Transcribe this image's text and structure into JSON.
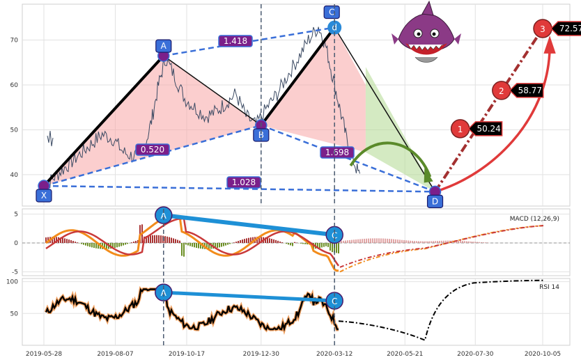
{
  "chart_data": [
    {
      "type": "line",
      "panel": "price",
      "title": "",
      "xlabel": "",
      "ylabel": "",
      "ylim": [
        33,
        78
      ],
      "yticks": [
        40,
        50,
        60,
        70
      ],
      "x_dates": [
        "2019-05-28",
        "2019-08-07",
        "2019-10-17",
        "2019-12-30",
        "2020-03-12",
        "2020-05-21",
        "2020-07-30",
        "2020-10-05"
      ],
      "price_series": {
        "name": "",
        "x": [
          "2019-05-28",
          "2019-06-05",
          "2019-06-15",
          "2019-06-25",
          "2019-07-05",
          "2019-07-15",
          "2019-07-25",
          "2019-08-05",
          "2019-08-15",
          "2019-08-25",
          "2019-09-05",
          "2019-09-12",
          "2019-09-19",
          "2019-09-26",
          "2019-10-05",
          "2019-10-15",
          "2019-10-25",
          "2019-11-05",
          "2019-11-15",
          "2019-11-25",
          "2019-12-05",
          "2019-12-15",
          "2019-12-25",
          "2020-01-05",
          "2020-01-15",
          "2020-01-25",
          "2020-02-05",
          "2020-02-15",
          "2020-02-25",
          "2020-03-03",
          "2020-03-10",
          "2020-03-17",
          "2020-03-24",
          "2020-03-31",
          "2020-04-07"
        ],
        "y": [
          37,
          39,
          41,
          43,
          45,
          47,
          49,
          48,
          45,
          44,
          46,
          52,
          60,
          66,
          62,
          57,
          55,
          53,
          54,
          56,
          58,
          53,
          51,
          55,
          58,
          62,
          66,
          70,
          73,
          69,
          62,
          55,
          48,
          43,
          39
        ]
      },
      "xabcd": {
        "points": [
          {
            "label": "X",
            "x": "2019-05-28",
            "y": 37.5
          },
          {
            "label": "A",
            "x": "2019-09-24",
            "y": 66.5
          },
          {
            "label": "B",
            "x": "2019-12-30",
            "y": 51.0
          },
          {
            "label": "C",
            "x": "2020-03-12",
            "y": 72.8
          },
          {
            "label": "D",
            "x": "2020-06-20",
            "y": 36.2
          }
        ],
        "ratios": [
          {
            "text": "0.520",
            "between": "XA-AB"
          },
          {
            "text": "1.418",
            "between": "A-C"
          },
          {
            "text": "1.698",
            "between": "B-D"
          },
          {
            "text": "1.028",
            "between": "X-D"
          }
        ]
      },
      "targets": [
        {
          "label": "1",
          "value": "50.24",
          "x": "2020-07-15",
          "y": 50.24
        },
        {
          "label": "2",
          "value": "58.77",
          "x": "2020-08-25",
          "y": 58.77
        },
        {
          "label": "3",
          "value": "72.57",
          "x": "2020-10-05",
          "y": 72.57
        }
      ],
      "vlines": [
        "2019-12-30",
        "2020-03-12"
      ]
    },
    {
      "type": "line",
      "panel": "macd",
      "title": "MACD (12,26,9)",
      "ylim": [
        -6,
        6
      ],
      "yticks": [
        -5,
        0,
        5
      ],
      "divergence_points": [
        {
          "label": "A",
          "x": "2019-09-24",
          "y": 4.8
        },
        {
          "label": "C",
          "x": "2020-03-12",
          "y": 1.4
        }
      ]
    },
    {
      "type": "line",
      "panel": "rsi",
      "title": "RSI 14",
      "ylim": [
        0,
        105
      ],
      "yticks": [
        50,
        100
      ],
      "divergence_points": [
        {
          "label": "A",
          "x": "2019-09-24",
          "y": 83
        },
        {
          "label": "C",
          "x": "2020-03-12",
          "y": 70
        }
      ]
    }
  ]
}
